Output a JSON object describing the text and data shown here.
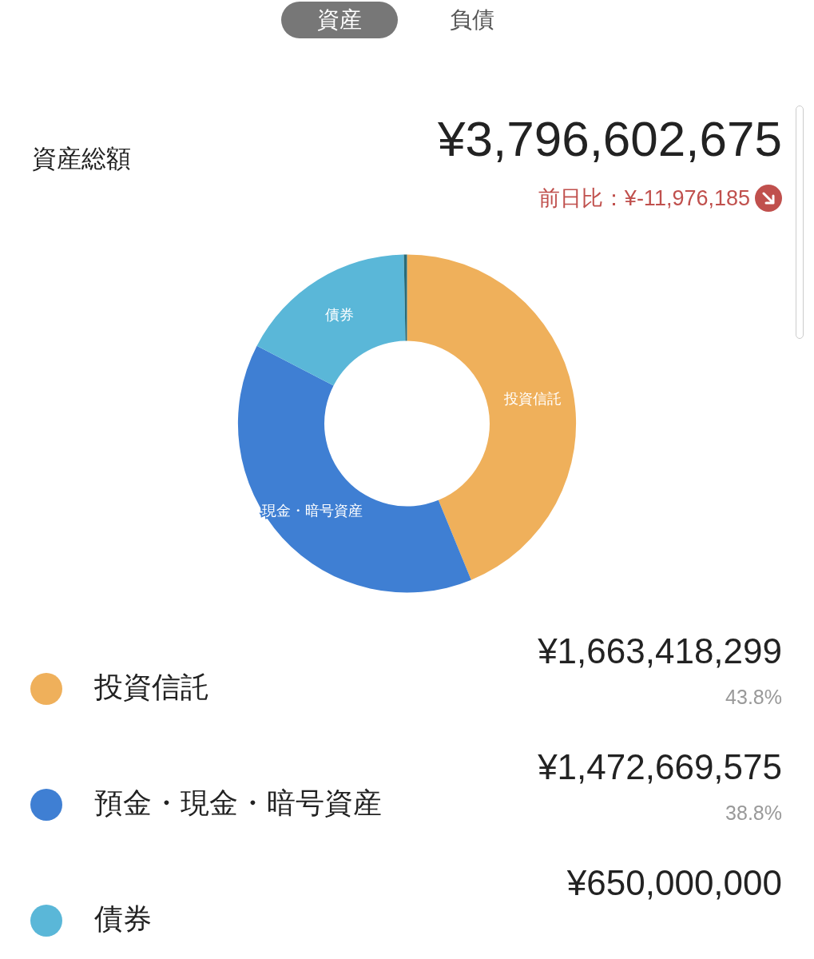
{
  "chart_data": {
    "type": "donut",
    "title": "資産総額",
    "subtitle": "¥3,796,602,675",
    "categories": [
      "投資信託",
      "預金・現金・暗号資産",
      "債券",
      null
    ],
    "values": [
      43.8,
      38.8,
      17.1,
      0.3
    ],
    "colors": [
      "#efb05b",
      "#3f7fd3",
      "#5ab7d8",
      "#2a6c78"
    ],
    "legend": "bottom",
    "annotations": [
      "資産",
      "負債",
      "前日比：¥-11,976,185",
      {
        "text": "投資信託",
        "x": "投資信託"
      },
      {
        "text": "¥1,663,418,299",
        "x": "投資信託"
      },
      {
        "text": "43.8%",
        "x": "投資信託"
      },
      {
        "text": "現金・暗号資産",
        "x": "預金・現金・暗号資産"
      },
      {
        "text": "¥1,472,669,575",
        "x": "預金・現金・暗号資産"
      },
      {
        "text": "38.8%",
        "x": "預金・現金・暗号資産"
      },
      {
        "text": "債券",
        "x": "債券"
      },
      {
        "text": "¥650,000,000",
        "x": "債券"
      }
    ]
  }
}
